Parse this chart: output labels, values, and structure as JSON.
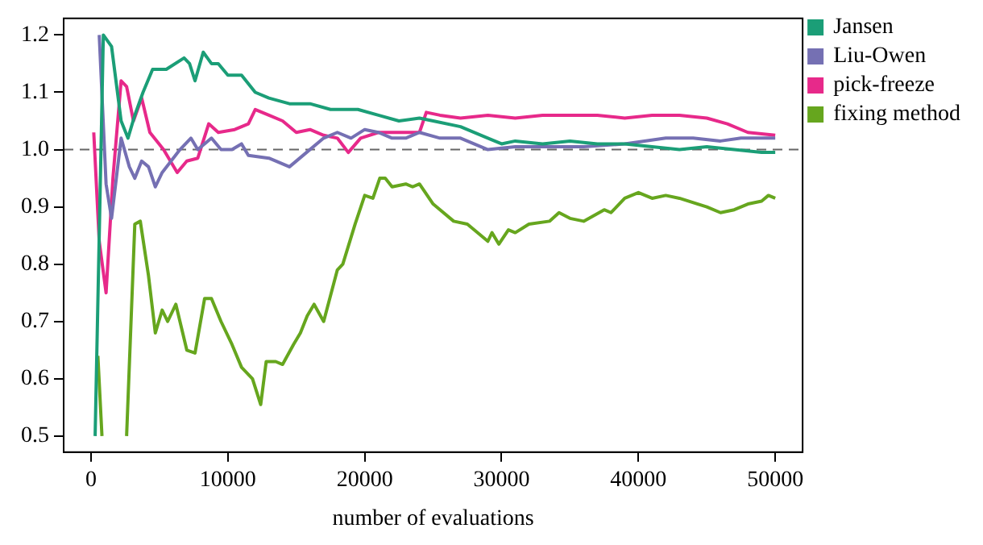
{
  "chart_data": {
    "type": "line",
    "xlabel": "number of evaluations",
    "xlim": [
      -2000,
      52000
    ],
    "xticks": [
      0,
      10000,
      20000,
      30000,
      40000,
      50000
    ],
    "ylim": [
      0.472,
      1.229
    ],
    "yticks": [
      0.5,
      0.6,
      0.7,
      0.8,
      0.9,
      {
        "value": 1.0,
        "label": "1.0"
      },
      1.1,
      1.2
    ],
    "grid": false,
    "legend": "top right",
    "marker": "none",
    "line_style": "solid",
    "ref_lines": [
      {
        "axis": "y",
        "value": 1.0,
        "color": "#666666",
        "line_style": "dashed"
      }
    ],
    "series": [
      {
        "name": "Jansen",
        "color": "#1b9e77",
        "x": [
          300,
          900,
          1500,
          2200,
          2700,
          3200,
          3800,
          4500,
          5500,
          6800,
          7200,
          7600,
          8200,
          8800,
          9300,
          10000,
          11000,
          12000,
          13000,
          14500,
          16000,
          17500,
          19500,
          21000,
          22500,
          24000,
          25000,
          27000,
          29000,
          30000,
          31000,
          33000,
          35000,
          37000,
          39000,
          41000,
          43000,
          45000,
          47000,
          49000,
          50000
        ],
        "values": [
          0.5,
          1.2,
          1.18,
          1.05,
          1.02,
          1.06,
          1.1,
          1.14,
          1.14,
          1.16,
          1.15,
          1.12,
          1.17,
          1.15,
          1.15,
          1.13,
          1.13,
          1.1,
          1.09,
          1.08,
          1.08,
          1.07,
          1.07,
          1.06,
          1.05,
          1.055,
          1.05,
          1.04,
          1.02,
          1.01,
          1.015,
          1.01,
          1.015,
          1.01,
          1.01,
          1.005,
          1.0,
          1.005,
          1.0,
          0.995,
          0.995
        ]
      },
      {
        "name": "Liu-Owen",
        "color": "#7570b3",
        "x": [
          600,
          1100,
          1500,
          2200,
          2800,
          3200,
          3700,
          4200,
          4700,
          5200,
          6500,
          7300,
          7800,
          8800,
          9500,
          10300,
          11000,
          11500,
          13000,
          14500,
          15500,
          17000,
          18000,
          19000,
          20000,
          21000,
          22000,
          23000,
          24000,
          25500,
          27000,
          29000,
          31000,
          34000,
          36000,
          39000,
          42000,
          44000,
          46000,
          47500,
          50000
        ],
        "values": [
          1.2,
          0.94,
          0.88,
          1.02,
          0.97,
          0.95,
          0.98,
          0.97,
          0.935,
          0.96,
          1.0,
          1.02,
          1.0,
          1.02,
          1.0,
          1.0,
          1.01,
          0.99,
          0.985,
          0.97,
          0.99,
          1.02,
          1.03,
          1.02,
          1.035,
          1.03,
          1.02,
          1.02,
          1.03,
          1.02,
          1.02,
          1.0,
          1.005,
          1.005,
          1.005,
          1.01,
          1.02,
          1.02,
          1.015,
          1.02,
          1.02
        ]
      },
      {
        "name": "pick-freeze",
        "color": "#e7298a",
        "x": [
          200,
          600,
          1100,
          1600,
          2200,
          2600,
          3100,
          3700,
          4300,
          5300,
          6300,
          7000,
          7800,
          8600,
          9300,
          10500,
          11500,
          12000,
          13000,
          14000,
          15000,
          16000,
          17000,
          18000,
          18800,
          19700,
          21000,
          23000,
          24000,
          24500,
          25500,
          27000,
          29000,
          31000,
          33000,
          37000,
          39000,
          41000,
          43000,
          45000,
          46500,
          48000,
          50000
        ],
        "values": [
          1.03,
          0.84,
          0.75,
          0.95,
          1.12,
          1.11,
          1.05,
          1.09,
          1.03,
          1.0,
          0.96,
          0.98,
          0.985,
          1.045,
          1.03,
          1.035,
          1.045,
          1.07,
          1.06,
          1.05,
          1.03,
          1.035,
          1.025,
          1.02,
          0.995,
          1.02,
          1.03,
          1.03,
          1.03,
          1.065,
          1.06,
          1.055,
          1.06,
          1.055,
          1.06,
          1.06,
          1.055,
          1.06,
          1.06,
          1.055,
          1.045,
          1.03,
          1.025
        ]
      },
      {
        "name": "fixing method",
        "color": "#66a61e",
        "x": [
          500,
          800,
          1700,
          2600,
          3200,
          3600,
          4200,
          4700,
          5200,
          5600,
          6200,
          7000,
          7600,
          8300,
          8800,
          9500,
          10300,
          11000,
          11800,
          12400,
          12800,
          13500,
          14000,
          14800,
          15300,
          15800,
          16300,
          17000,
          18000,
          18400,
          19300,
          20000,
          20600,
          21100,
          21500,
          22000,
          23000,
          23500,
          24000,
          25000,
          26500,
          27500,
          29000,
          29300,
          29800,
          30500,
          31000,
          32000,
          33500,
          34200,
          35000,
          36000,
          37500,
          38000,
          39000,
          40000,
          41000,
          42000,
          43000,
          45000,
          46000,
          47000,
          48000,
          49000,
          49500,
          50000
        ],
        "values": [
          0.64,
          0.5,
          null,
          0.5,
          0.87,
          0.875,
          0.78,
          0.68,
          0.72,
          0.7,
          0.73,
          0.65,
          0.645,
          0.74,
          0.74,
          0.7,
          0.66,
          0.62,
          0.6,
          0.555,
          0.63,
          0.63,
          0.625,
          0.66,
          0.68,
          0.71,
          0.73,
          0.7,
          0.79,
          0.8,
          0.87,
          0.92,
          0.915,
          0.95,
          0.95,
          0.935,
          0.94,
          0.935,
          0.94,
          0.905,
          0.875,
          0.87,
          0.84,
          0.855,
          0.835,
          0.86,
          0.855,
          0.87,
          0.875,
          0.89,
          0.88,
          0.875,
          0.895,
          0.89,
          0.915,
          0.925,
          0.915,
          0.92,
          0.915,
          0.9,
          0.89,
          0.895,
          0.905,
          0.91,
          0.92,
          0.915
        ]
      }
    ]
  }
}
